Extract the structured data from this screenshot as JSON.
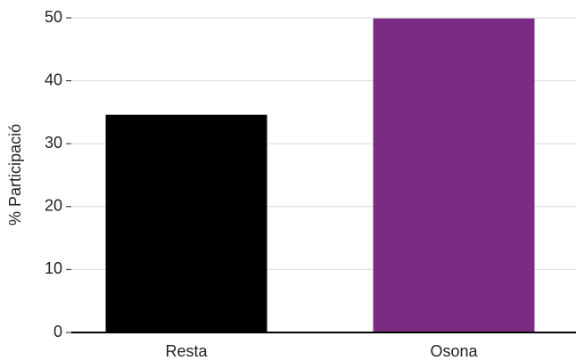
{
  "chart_data": {
    "type": "bar",
    "y_label": "% Participació",
    "categories": [
      "Resta",
      "Osona"
    ],
    "values": [
      34.6,
      49.9
    ],
    "colors": [
      "#000000",
      "#7a2c82"
    ],
    "ylim": [
      0,
      50
    ],
    "yticks": [
      0,
      10,
      20,
      30,
      40,
      50
    ],
    "grid": true
  }
}
